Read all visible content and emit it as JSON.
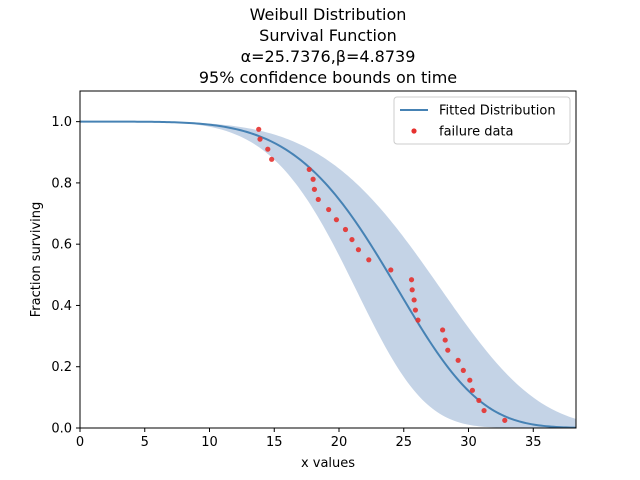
{
  "chart_data": {
    "type": "line",
    "title_lines": [
      "Weibull Distribution",
      "Survival Function",
      "α=25.7376,β=4.8739",
      "95% confidence bounds on time"
    ],
    "xlabel": "x values",
    "ylabel": "Fraction surviving",
    "xlim": [
      0,
      38.3
    ],
    "ylim": [
      0,
      1.1
    ],
    "xticks": [
      0,
      5,
      10,
      15,
      20,
      25,
      30,
      35
    ],
    "yticks": [
      0.0,
      0.2,
      0.4,
      0.6,
      0.8,
      1.0
    ],
    "legend_position": "top-right",
    "fitted": {
      "name": "Fitted Distribution",
      "alpha": 25.7376,
      "beta": 4.8739,
      "color": "#4682b4"
    },
    "bounds": {
      "color": "#b0c4de",
      "lower_alpha": 22.3,
      "lower_beta": 5.1,
      "upper_alpha": 29.3,
      "upper_beta": 4.7
    },
    "scatter": {
      "name": "failure data",
      "color": "#e6312e",
      "x": [
        13.8,
        13.9,
        14.5,
        14.8,
        17.7,
        18.0,
        18.1,
        18.4,
        19.2,
        19.8,
        20.5,
        21.0,
        21.5,
        22.3,
        24.0,
        25.6,
        25.65,
        25.8,
        25.9,
        26.1,
        28.0,
        28.2,
        28.4,
        29.2,
        29.6,
        30.1,
        30.3,
        30.8,
        31.2,
        32.8
      ],
      "y": [
        0.975,
        0.943,
        0.91,
        0.877,
        0.844,
        0.812,
        0.779,
        0.746,
        0.713,
        0.68,
        0.648,
        0.615,
        0.582,
        0.549,
        0.516,
        0.484,
        0.451,
        0.418,
        0.385,
        0.352,
        0.32,
        0.287,
        0.254,
        0.221,
        0.188,
        0.156,
        0.123,
        0.09,
        0.057,
        0.025
      ]
    }
  }
}
